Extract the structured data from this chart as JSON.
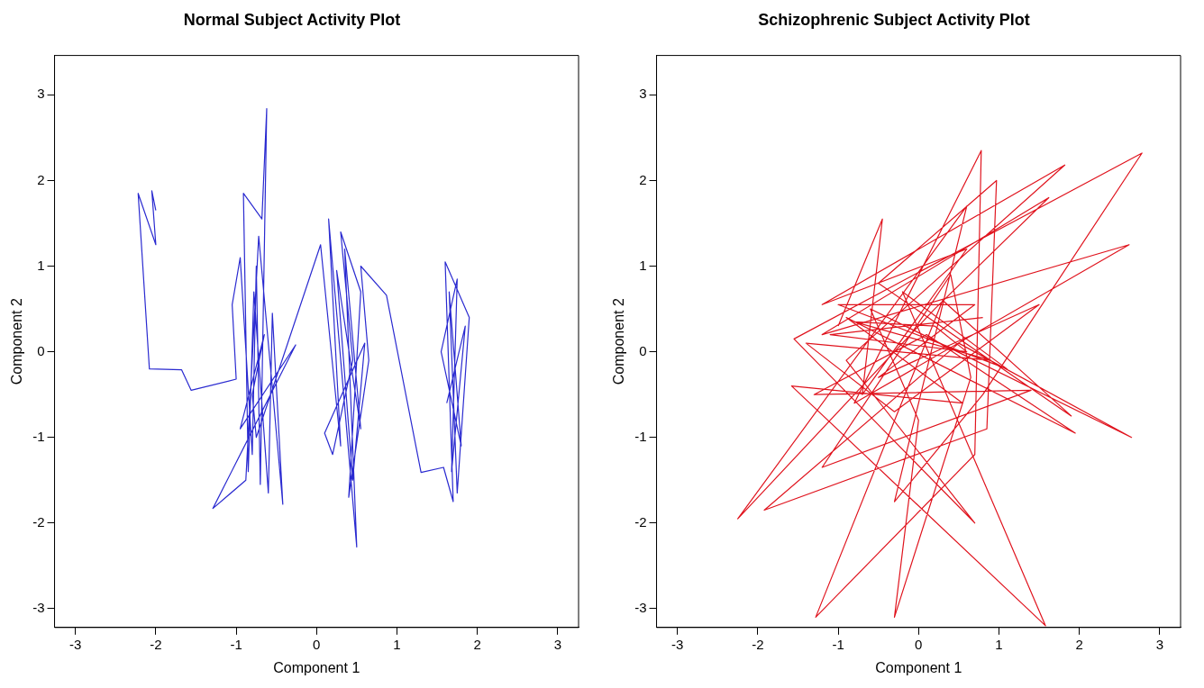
{
  "chart_data": [
    {
      "type": "line",
      "title": "Normal Subject Activity Plot",
      "xlabel": "Component 1",
      "ylabel": "Component 2",
      "xlim": [
        -3.26,
        3.26
      ],
      "ylim": [
        -3.22,
        3.46
      ],
      "xticks": [
        -3,
        -2,
        -1,
        0,
        1,
        2,
        3
      ],
      "yticks": [
        -3,
        -2,
        -1,
        0,
        1,
        2,
        3
      ],
      "grid": false,
      "legend": false,
      "marker": "none",
      "line_style": "solid",
      "series": [
        {
          "color": "#2a2ad0",
          "x": [
            -2.0,
            -2.05,
            -2.0,
            -2.22,
            -2.08,
            -1.68,
            -1.56,
            -1.0,
            -1.05,
            -0.95,
            -0.8,
            -0.75,
            -0.7,
            -0.62,
            -0.68,
            -0.91,
            -0.85,
            -0.78,
            -0.6,
            -0.55,
            -0.42,
            -0.72,
            -0.88,
            -1.29,
            -0.26,
            -0.95,
            -0.65,
            -0.8,
            -0.75,
            0.05,
            0.3,
            0.15,
            0.5,
            0.35,
            0.55,
            0.25,
            0.45,
            0.6,
            0.1,
            0.2,
            0.45,
            0.3,
            0.55,
            0.4,
            0.65,
            0.55,
            0.87,
            1.3,
            1.58,
            1.7,
            1.6,
            1.9,
            1.75,
            1.65,
            1.8,
            1.55,
            1.75,
            1.68,
            1.85,
            1.62
          ],
          "values": [
            1.65,
            1.88,
            1.25,
            1.85,
            -0.2,
            -0.21,
            -0.45,
            -0.32,
            0.55,
            1.1,
            -1.2,
            1.0,
            -1.55,
            2.84,
            1.55,
            1.85,
            -1.4,
            0.7,
            -1.65,
            0.45,
            -1.78,
            1.35,
            -1.5,
            -1.83,
            0.08,
            -0.9,
            0.2,
            -0.5,
            -1.0,
            1.25,
            -1.1,
            1.55,
            -2.28,
            1.2,
            -0.9,
            0.95,
            -1.5,
            0.1,
            -0.95,
            -1.2,
            -0.1,
            1.4,
            0.7,
            -1.7,
            -0.1,
            1.0,
            0.66,
            -1.41,
            -1.35,
            -1.75,
            1.05,
            0.4,
            -1.65,
            0.7,
            -1.1,
            0.0,
            0.85,
            -1.4,
            0.3,
            -0.6
          ]
        }
      ]
    },
    {
      "type": "line",
      "title": "Schizophrenic Subject Activity Plot",
      "xlabel": "Component 1",
      "ylabel": "Component 2",
      "xlim": [
        -3.26,
        3.26
      ],
      "ylim": [
        -3.22,
        3.46
      ],
      "xticks": [
        -3,
        -2,
        -1,
        0,
        1,
        2,
        3
      ],
      "yticks": [
        -3,
        -2,
        -1,
        0,
        1,
        2,
        3
      ],
      "grid": false,
      "legend": false,
      "marker": "none",
      "line_style": "solid",
      "series": [
        {
          "color": "#e0141e",
          "x": [
            -1.0,
            -0.45,
            -0.7,
            0.6,
            -1.2,
            1.82,
            -0.9,
            0.7,
            -1.55,
            2.78,
            0.8,
            -0.3,
            0.6,
            -2.25,
            0.2,
            1.62,
            -1.2,
            2.62,
            -0.8,
            0.78,
            0.7,
            -1.28,
            0.3,
            1.9,
            -0.5,
            0.97,
            0.85,
            -1.92,
            0.5,
            2.65,
            -0.6,
            0.0,
            -0.3,
            0.65,
            0.4,
            -1.2,
            1.4,
            -1.3,
            0.1,
            1.95,
            -0.9,
            0.55,
            -1.58,
            1.58,
            -0.2,
            1.1,
            -1.0,
            0.7,
            -0.5,
            1.5,
            -0.3,
            -1.4,
            0.9,
            -0.8,
            0.2,
            0.6,
            -1.1,
            0.8
          ],
          "values": [
            0.3,
            1.55,
            -0.5,
            1.2,
            0.55,
            2.18,
            -0.1,
            -2.0,
            0.15,
            2.32,
            -0.5,
            -1.75,
            1.7,
            -1.95,
            0.5,
            1.8,
            0.2,
            1.25,
            -0.6,
            2.35,
            -1.2,
            -3.1,
            0.6,
            -0.75,
            0.8,
            2.0,
            -0.9,
            -1.85,
            0.1,
            -1.0,
            0.5,
            -0.8,
            -3.1,
            -0.3,
            0.9,
            -1.35,
            -0.45,
            -0.5,
            0.2,
            -0.95,
            0.4,
            -0.6,
            -0.4,
            -3.2,
            0.7,
            -0.2,
            0.55,
            0.55,
            -0.3,
            0.55,
            -0.7,
            0.1,
            -0.1,
            0.35,
            0.3,
            0.0,
            0.2,
            0.4
          ]
        }
      ]
    }
  ]
}
